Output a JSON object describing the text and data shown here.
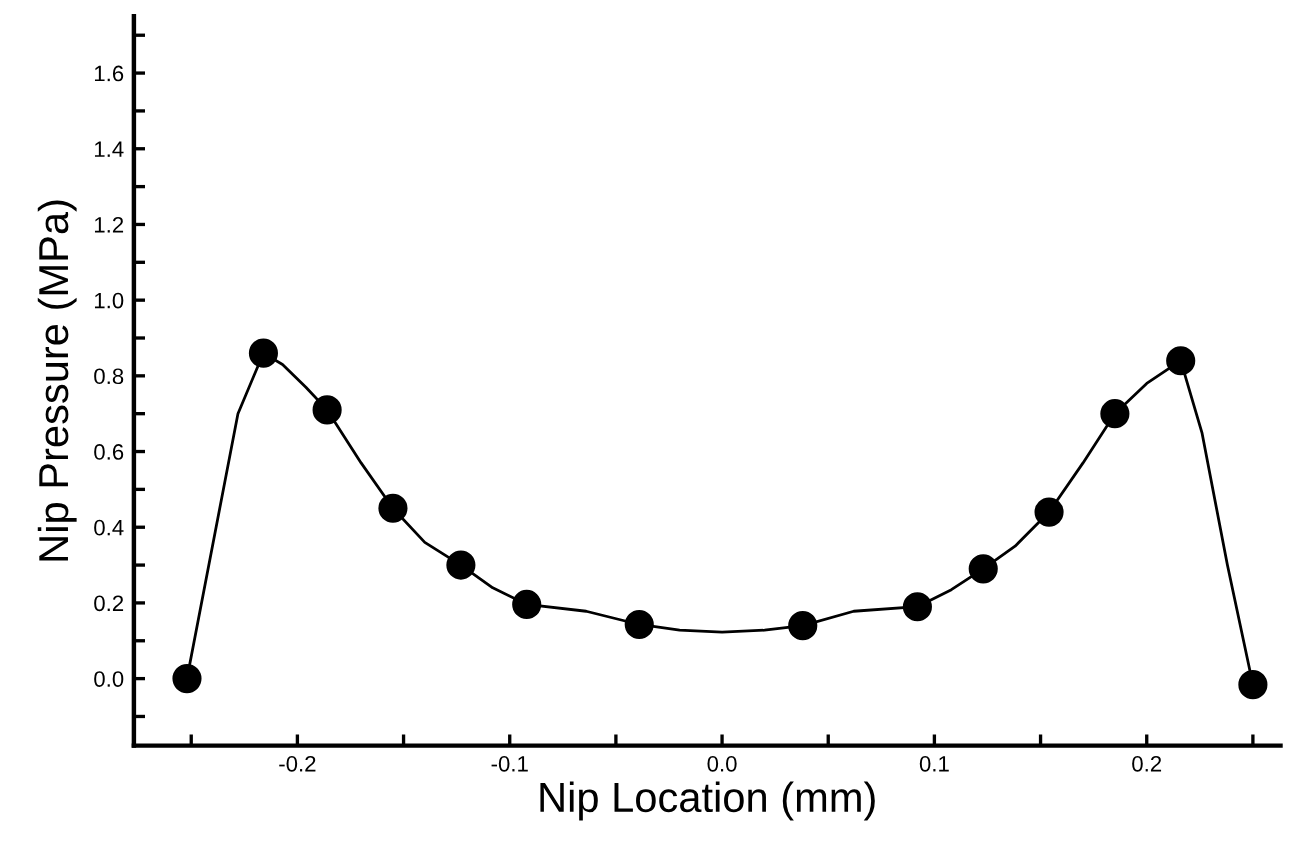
{
  "chart_data": {
    "type": "line",
    "xlabel": "Nip Location (mm)",
    "ylabel": "Nip Pressure (MPa)",
    "xlim": [
      -0.277,
      0.263
    ],
    "ylim": [
      -0.177,
      1.75
    ],
    "xticks": [
      {
        "value": -0.25,
        "label": null
      },
      {
        "value": -0.2,
        "label": "-0.2"
      },
      {
        "value": -0.15,
        "label": null
      },
      {
        "value": -0.1,
        "label": "-0.1"
      },
      {
        "value": -0.05,
        "label": null
      },
      {
        "value": 0.0,
        "label": "0.0"
      },
      {
        "value": 0.05,
        "label": null
      },
      {
        "value": 0.1,
        "label": "0.1"
      },
      {
        "value": 0.15,
        "label": null
      },
      {
        "value": 0.2,
        "label": "0.2"
      },
      {
        "value": 0.25,
        "label": null
      }
    ],
    "yticks": [
      {
        "value": -0.1,
        "label": null
      },
      {
        "value": 0.0,
        "label": "0.0"
      },
      {
        "value": 0.1,
        "label": null
      },
      {
        "value": 0.2,
        "label": "0.2"
      },
      {
        "value": 0.3,
        "label": null
      },
      {
        "value": 0.4,
        "label": "0.4"
      },
      {
        "value": 0.5,
        "label": null
      },
      {
        "value": 0.6,
        "label": "0.6"
      },
      {
        "value": 0.7,
        "label": null
      },
      {
        "value": 0.8,
        "label": "0.8"
      },
      {
        "value": 0.9,
        "label": null
      },
      {
        "value": 1.0,
        "label": "1.0"
      },
      {
        "value": 1.1,
        "label": null
      },
      {
        "value": 1.2,
        "label": "1.2"
      },
      {
        "value": 1.3,
        "label": null
      },
      {
        "value": 1.4,
        "label": "1.4"
      },
      {
        "value": 1.5,
        "label": null
      },
      {
        "value": 1.6,
        "label": "1.6"
      },
      {
        "value": 1.7,
        "label": null
      }
    ],
    "grid": false,
    "legend": false,
    "line_style": "solid",
    "series": [
      {
        "color": "#000000",
        "marker": "none",
        "x": [
          -0.252,
          -0.228,
          -0.216,
          -0.207,
          -0.196,
          -0.186,
          -0.17,
          -0.155,
          -0.14,
          -0.123,
          -0.108,
          -0.092,
          -0.064,
          -0.039,
          -0.02,
          0.0,
          0.02,
          0.038,
          0.062,
          0.092,
          0.108,
          0.123,
          0.138,
          0.154,
          0.17,
          0.185,
          0.2,
          0.216,
          0.226,
          0.238,
          0.25
        ],
        "values": [
          0.0,
          0.7,
          0.86,
          0.83,
          0.77,
          0.71,
          0.57,
          0.45,
          0.36,
          0.3,
          0.24,
          0.196,
          0.178,
          0.143,
          0.128,
          0.123,
          0.128,
          0.14,
          0.178,
          0.19,
          0.235,
          0.29,
          0.35,
          0.44,
          0.57,
          0.7,
          0.78,
          0.84,
          0.65,
          0.3,
          -0.016
        ]
      },
      {
        "type": "scatter",
        "color": "#000000",
        "marker": "circle",
        "x": [
          -0.252,
          -0.216,
          -0.186,
          -0.155,
          -0.123,
          -0.092,
          -0.039,
          0.038,
          0.092,
          0.123,
          0.154,
          0.185,
          0.216,
          0.25
        ],
        "values": [
          0.0,
          0.86,
          0.71,
          0.45,
          0.3,
          0.196,
          0.143,
          0.14,
          0.19,
          0.29,
          0.44,
          0.7,
          0.84,
          -0.016
        ]
      }
    ]
  }
}
